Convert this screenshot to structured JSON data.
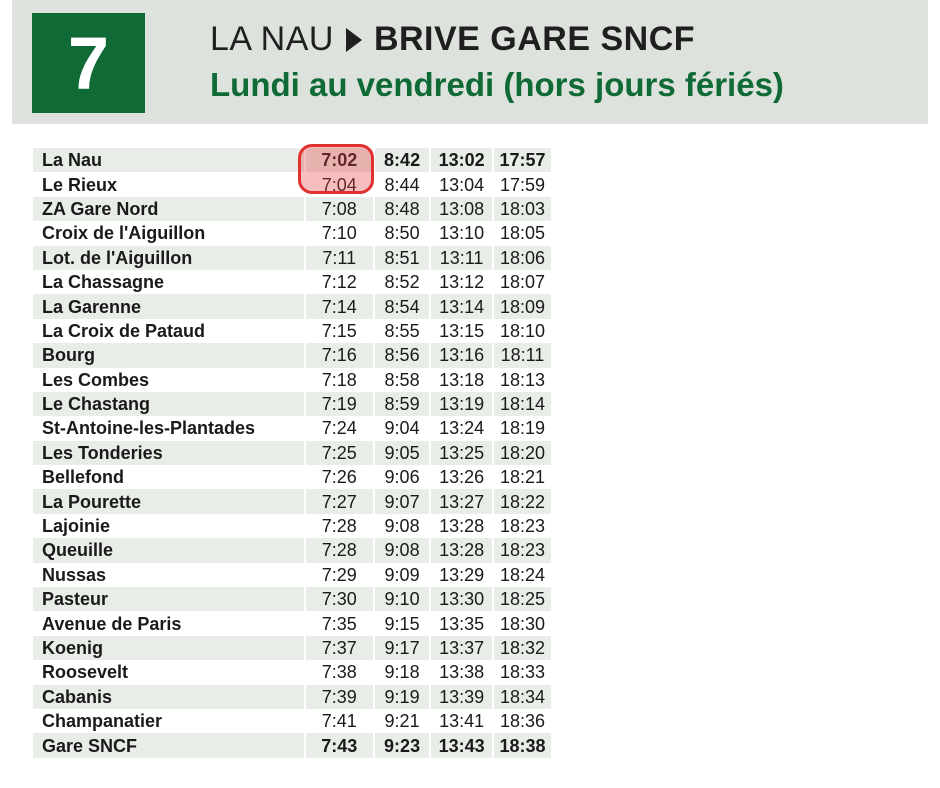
{
  "header": {
    "line_number": "7",
    "origin": "LA NAU",
    "destination": "BRIVE GARE SNCF",
    "days": "Lundi au vendredi (hors jours fériés)",
    "accent_color": "#0f6a35",
    "header_bg": "#dde3dc"
  },
  "timetable": {
    "rows": [
      {
        "stop": "La Nau",
        "times": [
          "7:02",
          "8:42",
          "13:02",
          "17:57"
        ],
        "bold": true
      },
      {
        "stop": "Le Rieux",
        "times": [
          "7:04",
          "8:44",
          "13:04",
          "17:59"
        ]
      },
      {
        "stop": "ZA Gare Nord",
        "times": [
          "7:08",
          "8:48",
          "13:08",
          "18:03"
        ]
      },
      {
        "stop": "Croix de l'Aiguillon",
        "times": [
          "7:10",
          "8:50",
          "13:10",
          "18:05"
        ]
      },
      {
        "stop": "Lot. de l'Aiguillon",
        "times": [
          "7:11",
          "8:51",
          "13:11",
          "18:06"
        ]
      },
      {
        "stop": "La Chassagne",
        "times": [
          "7:12",
          "8:52",
          "13:12",
          "18:07"
        ]
      },
      {
        "stop": "La Garenne",
        "times": [
          "7:14",
          "8:54",
          "13:14",
          "18:09"
        ]
      },
      {
        "stop": "La Croix de Pataud",
        "times": [
          "7:15",
          "8:55",
          "13:15",
          "18:10"
        ]
      },
      {
        "stop": "Bourg",
        "times": [
          "7:16",
          "8:56",
          "13:16",
          "18:11"
        ]
      },
      {
        "stop": "Les Combes",
        "times": [
          "7:18",
          "8:58",
          "13:18",
          "18:13"
        ]
      },
      {
        "stop": "Le Chastang",
        "times": [
          "7:19",
          "8:59",
          "13:19",
          "18:14"
        ]
      },
      {
        "stop": "St-Antoine-les-Plantades",
        "times": [
          "7:24",
          "9:04",
          "13:24",
          "18:19"
        ]
      },
      {
        "stop": "Les Tonderies",
        "times": [
          "7:25",
          "9:05",
          "13:25",
          "18:20"
        ]
      },
      {
        "stop": "Bellefond",
        "times": [
          "7:26",
          "9:06",
          "13:26",
          "18:21"
        ]
      },
      {
        "stop": "La Pourette",
        "times": [
          "7:27",
          "9:07",
          "13:27",
          "18:22"
        ]
      },
      {
        "stop": "Lajoinie",
        "times": [
          "7:28",
          "9:08",
          "13:28",
          "18:23"
        ]
      },
      {
        "stop": "Queuille",
        "times": [
          "7:28",
          "9:08",
          "13:28",
          "18:23"
        ]
      },
      {
        "stop": "Nussas",
        "times": [
          "7:29",
          "9:09",
          "13:29",
          "18:24"
        ]
      },
      {
        "stop": "Pasteur",
        "times": [
          "7:30",
          "9:10",
          "13:30",
          "18:25"
        ]
      },
      {
        "stop": "Avenue de Paris",
        "times": [
          "7:35",
          "9:15",
          "13:35",
          "18:30"
        ]
      },
      {
        "stop": "Koenig",
        "times": [
          "7:37",
          "9:17",
          "13:37",
          "18:32"
        ]
      },
      {
        "stop": "Roosevelt",
        "times": [
          "7:38",
          "9:18",
          "13:38",
          "18:33"
        ]
      },
      {
        "stop": "Cabanis",
        "times": [
          "7:39",
          "9:19",
          "13:39",
          "18:34"
        ]
      },
      {
        "stop": "Champanatier",
        "times": [
          "7:41",
          "9:21",
          "13:41",
          "18:36"
        ]
      },
      {
        "stop": "Gare SNCF",
        "times": [
          "7:43",
          "9:23",
          "13:43",
          "18:38"
        ],
        "bold": true
      }
    ]
  },
  "highlight": {
    "color": "#e0302f"
  }
}
